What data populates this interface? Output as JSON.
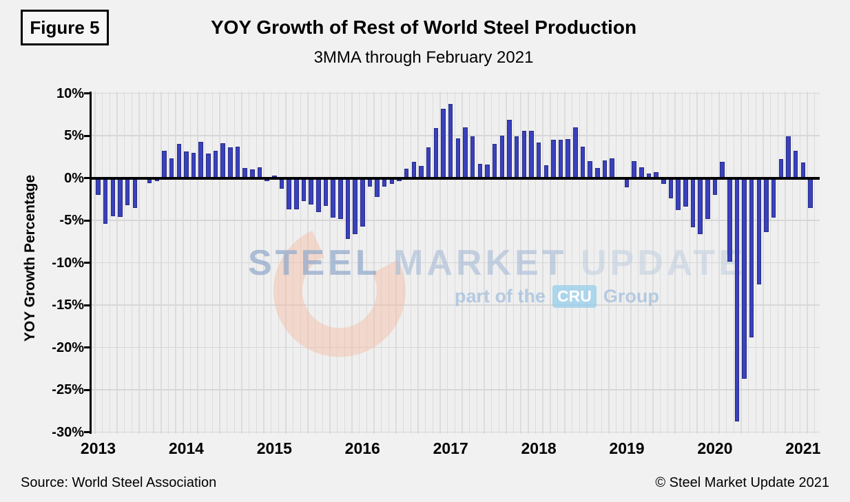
{
  "header": {
    "figure_label": "Figure 5"
  },
  "footer": {
    "source": "Source: World Steel Association",
    "copyright": "© Steel Market Update 2021"
  },
  "watermark": {
    "words": [
      "STEEL",
      "MARKET",
      "UPDATE"
    ],
    "tagline_prefix": "part of the",
    "tagline_box": "CRU",
    "tagline_suffix": "Group"
  },
  "colors": {
    "background": "#f1f1f1",
    "bar": "#3a41bd",
    "bar_border": "#262a86",
    "zero_line": "#000000",
    "grid": "#dcdcdc",
    "watermark_crescent": "#f2b49a",
    "cru_box": "#96cde9"
  },
  "chart_data": {
    "type": "bar",
    "title": "YOY Growth of Rest of World Steel Production",
    "subtitle": "3MMA through February 2021",
    "xlabel": "",
    "ylabel": "YOY Growth Percentage",
    "ylim": [
      -30,
      10
    ],
    "ytick_values": [
      10,
      5,
      0,
      -5,
      -10,
      -15,
      -20,
      -25,
      -30
    ],
    "ytick_labels": [
      "10%",
      "5%",
      "0%",
      "-5%",
      "-10%",
      "-15%",
      "-20%",
      "-25%",
      "-30%"
    ],
    "x_year_labels": [
      "2013",
      "2014",
      "2015",
      "2016",
      "2017",
      "2018",
      "2019",
      "2020",
      "2021"
    ],
    "x_unit": "month",
    "start_month": "2013-01",
    "end_month": "2021-02",
    "grid": true,
    "legend": false,
    "values_by_year": {
      "2013": [
        -2.0,
        -5.4,
        -4.5,
        -4.6,
        -3.2,
        -3.5,
        0.0,
        -0.6,
        -0.4,
        3.2,
        2.3,
        4.0
      ],
      "2014": [
        3.1,
        3.0,
        4.3,
        2.9,
        3.2,
        4.1,
        3.6,
        3.7,
        1.2,
        1.0,
        1.3,
        -0.4
      ],
      "2015": [
        0.3,
        -1.3,
        -3.7,
        -3.7,
        -2.7,
        -3.1,
        -4.0,
        -3.3,
        -4.7,
        -4.8,
        -7.2,
        -6.6
      ],
      "2016": [
        -5.7,
        -1.0,
        -2.2,
        -1.0,
        -0.7,
        -0.4,
        1.1,
        1.9,
        1.4,
        3.6,
        5.9,
        8.2
      ],
      "2017": [
        8.7,
        4.7,
        6.0,
        4.9,
        1.7,
        1.6,
        4.0,
        5.0,
        6.9,
        4.9,
        5.6,
        5.6
      ],
      "2018": [
        4.2,
        1.5,
        4.5,
        4.5,
        4.6,
        6.0,
        3.7,
        2.0,
        1.2,
        2.1,
        2.3,
        0.0
      ],
      "2019": [
        -1.1,
        2.0,
        1.3,
        0.5,
        0.7,
        -0.7,
        -2.4,
        -3.8,
        -3.4,
        -5.8,
        -6.6,
        -4.8
      ],
      "2020": [
        -2.0,
        1.9,
        -9.9,
        -28.7,
        -23.7,
        -18.8,
        -12.6,
        -6.4,
        -4.7,
        2.2,
        4.9,
        3.2
      ],
      "2021": [
        1.8,
        -3.5
      ]
    }
  }
}
